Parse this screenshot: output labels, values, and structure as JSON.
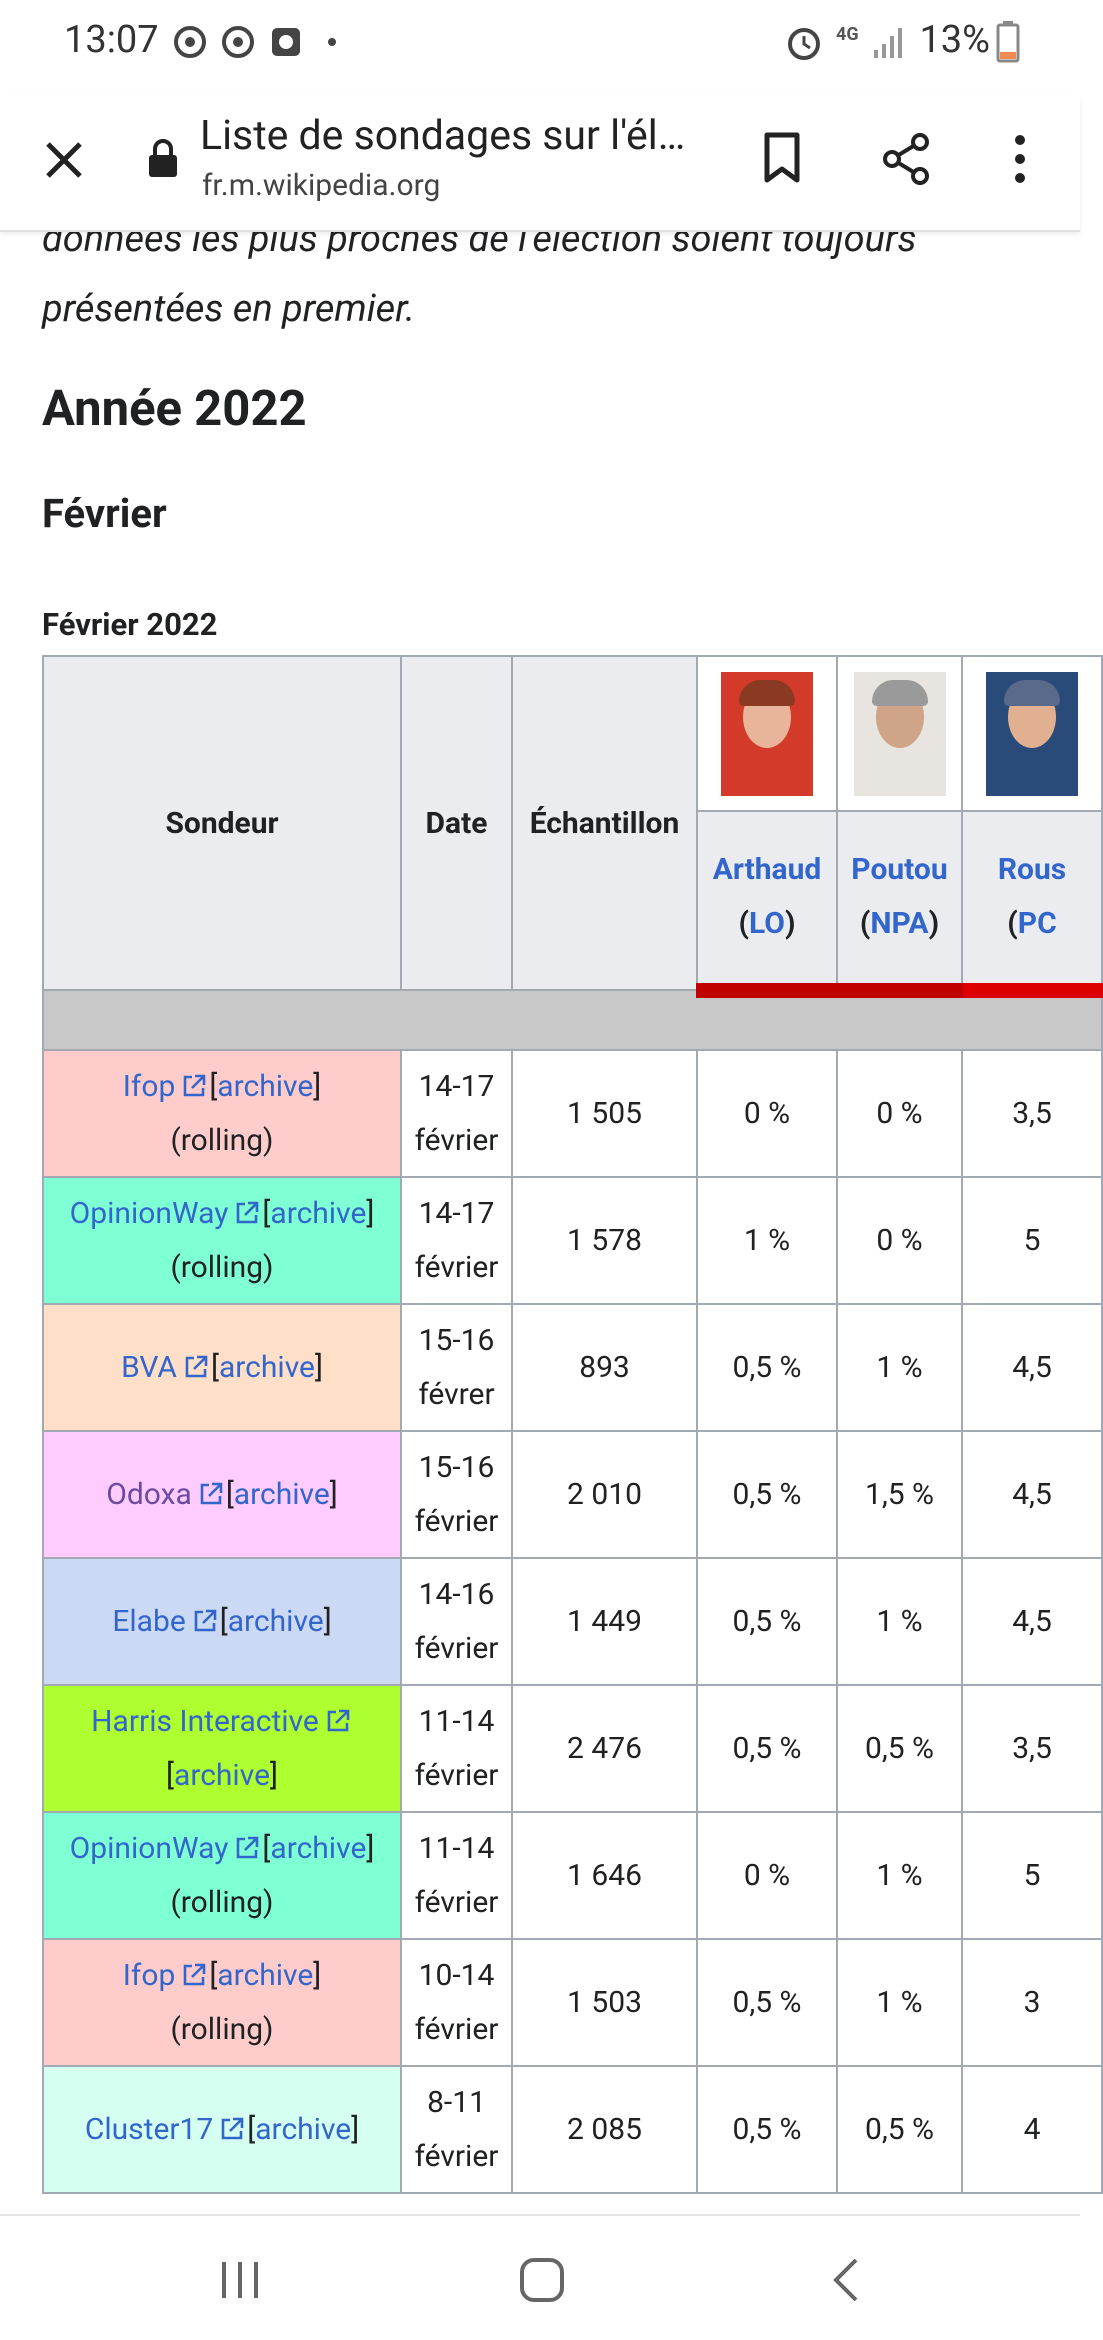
{
  "status_bar": {
    "time": "13:07",
    "network": "4G",
    "battery": "13%"
  },
  "browser": {
    "title": "Liste de sondages sur l'él…",
    "url": "fr.m.wikipedia.org"
  },
  "article": {
    "intro": "données les plus proches de l'élection soient toujours présentées en premier.",
    "heading": "Année 2022",
    "subheading": "Février",
    "caption": "Février 2022"
  },
  "table": {
    "headers": [
      "Sondeur",
      "Date",
      "Échantillon"
    ],
    "candidates": [
      {
        "name": "Arthaud",
        "party": [
          "(",
          "LO",
          ")"
        ],
        "color": "#c00000"
      },
      {
        "name": "Poutou",
        "party": [
          "(",
          "NPA",
          ")"
        ],
        "color": "#c00000"
      },
      {
        "name": "Rous",
        "party": [
          "(",
          "PC"
        ],
        "color": "#dd0000"
      }
    ],
    "rows": [
      {
        "pollster": "Ifop",
        "archive": [
          "[",
          "archive",
          "]"
        ],
        "note": "(rolling)",
        "color": "#ffcccc",
        "date": "14-17 février",
        "sample": "1 505",
        "values": [
          "0 %",
          "0 %",
          "3,5"
        ]
      },
      {
        "pollster": "OpinionWay",
        "archive": [
          "[",
          "archive",
          "]"
        ],
        "note": "(rolling)",
        "color": "#7fffd4",
        "date": "14-17 février",
        "sample": "1 578",
        "values": [
          "1 %",
          "0 %",
          "5"
        ]
      },
      {
        "pollster": "BVA",
        "archive": [
          "[",
          "archive",
          "]"
        ],
        "color": "#ffdfc8",
        "date": "15-16 févrer",
        "sample": "893",
        "values": [
          "0,5 %",
          "1 %",
          "4,5"
        ]
      },
      {
        "pollster": "Odoxa",
        "archive": [
          "[",
          "archive",
          "]"
        ],
        "color": "#ffccff",
        "visited": true,
        "date": "15-16 février",
        "sample": "2 010",
        "values": [
          "0,5 %",
          "1,5 %",
          "4,5"
        ]
      },
      {
        "pollster": "Elabe",
        "archive": [
          "[",
          "archive",
          "]"
        ],
        "color": "#ccd9f5",
        "date": "14-16 février",
        "sample": "1 449",
        "values": [
          "0,5 %",
          "1 %",
          "4,5"
        ]
      },
      {
        "pollster": "Harris Interactive",
        "archive": [
          "[",
          "archive",
          "]"
        ],
        "color": "#adff2f",
        "date": "11-14 février",
        "sample": "2 476",
        "values": [
          "0,5 %",
          "0,5 %",
          "3,5"
        ]
      },
      {
        "pollster": "OpinionWay",
        "archive": [
          "[",
          "archive",
          "]"
        ],
        "note": "(rolling)",
        "color": "#7fffd4",
        "date": "11-14 février",
        "sample": "1 646",
        "values": [
          "0 %",
          "1 %",
          "5"
        ]
      },
      {
        "pollster": "Ifop",
        "archive": [
          "[",
          "archive",
          "]"
        ],
        "note": "(rolling)",
        "color": "#ffcccc",
        "date": "10-14 février",
        "sample": "1 503",
        "values": [
          "0,5 %",
          "1 %",
          "3"
        ]
      },
      {
        "pollster": "Cluster17",
        "archive": [
          "[",
          "archive",
          "]"
        ],
        "color": "#d5fff0",
        "date": "8-11 février",
        "sample": "2 085",
        "values": [
          "0,5 %",
          "0,5 %",
          "4"
        ]
      }
    ]
  }
}
